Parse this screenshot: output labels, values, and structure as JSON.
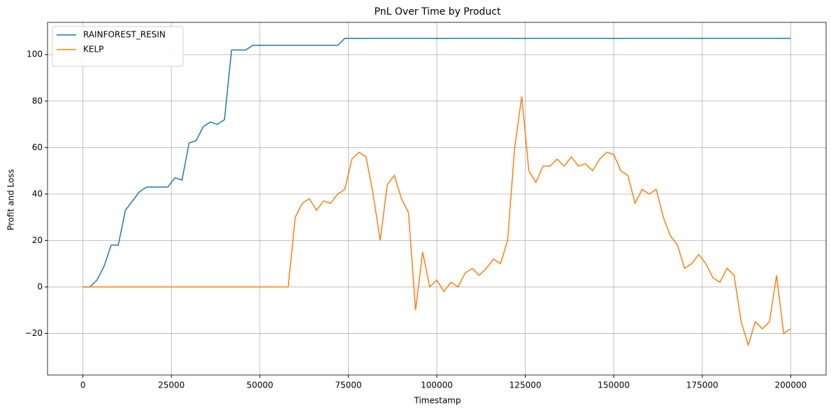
{
  "chart_data": {
    "type": "line",
    "title": "PnL Over Time by Product",
    "x_label": "Timestamp",
    "y_label": "Profit and Loss",
    "x": [
      0,
      2000,
      4000,
      6000,
      8000,
      10000,
      12000,
      14000,
      16000,
      18000,
      20000,
      22000,
      24000,
      26000,
      28000,
      30000,
      32000,
      34000,
      36000,
      38000,
      40000,
      42000,
      44000,
      46000,
      48000,
      50000,
      52000,
      54000,
      56000,
      58000,
      60000,
      62000,
      64000,
      66000,
      68000,
      70000,
      72000,
      74000,
      76000,
      78000,
      80000,
      82000,
      84000,
      86000,
      88000,
      90000,
      92000,
      94000,
      96000,
      98000,
      100000,
      102000,
      104000,
      106000,
      108000,
      110000,
      112000,
      114000,
      116000,
      118000,
      120000,
      122000,
      124000,
      126000,
      128000,
      130000,
      132000,
      134000,
      136000,
      138000,
      140000,
      142000,
      144000,
      146000,
      148000,
      150000,
      152000,
      154000,
      156000,
      158000,
      160000,
      162000,
      164000,
      166000,
      168000,
      170000,
      172000,
      174000,
      176000,
      178000,
      180000,
      182000,
      184000,
      186000,
      188000,
      190000,
      192000,
      194000,
      196000,
      198000,
      200000
    ],
    "series": [
      {
        "name": "RAINFOREST_RESIN",
        "color": "#1f77b4",
        "values": [
          0,
          0,
          3,
          9,
          18,
          18,
          33,
          37,
          41,
          43,
          43,
          43,
          43,
          47,
          46,
          62,
          63,
          69,
          71,
          70,
          72,
          102,
          102,
          102,
          104,
          104,
          104,
          104,
          104,
          104,
          104,
          104,
          104,
          104,
          104,
          104,
          104,
          107,
          107,
          107,
          107,
          107,
          107,
          107,
          107,
          107,
          107,
          107,
          107,
          107,
          107,
          107,
          107,
          107,
          107,
          107,
          107,
          107,
          107,
          107,
          107,
          107,
          107,
          107,
          107,
          107,
          107,
          107,
          107,
          107,
          107,
          107,
          107,
          107,
          107,
          107,
          107,
          107,
          107,
          107,
          107,
          107,
          107,
          107,
          107,
          107,
          107,
          107,
          107,
          107,
          107,
          107,
          107,
          107,
          107,
          107,
          107,
          107,
          107,
          107,
          107
        ]
      },
      {
        "name": "KELP",
        "color": "#ff7f0e",
        "values": [
          0,
          0,
          0,
          0,
          0,
          0,
          0,
          0,
          0,
          0,
          0,
          0,
          0,
          0,
          0,
          0,
          0,
          0,
          0,
          0,
          0,
          0,
          0,
          0,
          0,
          0,
          0,
          0,
          0,
          0,
          30,
          36,
          38,
          33,
          37,
          36,
          40,
          42,
          55,
          58,
          56,
          40,
          20,
          44,
          48,
          38,
          32,
          -10,
          15,
          0,
          3,
          -2,
          2,
          0,
          6,
          8,
          5,
          8,
          12,
          10,
          20,
          60,
          82,
          50,
          45,
          52,
          52,
          55,
          52,
          56,
          52,
          53,
          50,
          55,
          58,
          57,
          50,
          48,
          36,
          42,
          40,
          42,
          30,
          22,
          18,
          8,
          10,
          14,
          10,
          4,
          2,
          8,
          5,
          -15,
          -25,
          -15,
          -18,
          -15,
          5,
          -20,
          -18
        ]
      }
    ],
    "xlim": [
      -10000,
      210000
    ],
    "ylim": [
      -37.9,
      113.9
    ],
    "xticks": [
      0,
      25000,
      50000,
      75000,
      100000,
      125000,
      150000,
      175000,
      200000
    ],
    "yticks": [
      {
        "value": -20,
        "label": "−20"
      },
      0,
      20,
      40,
      60,
      80,
      100
    ],
    "grid": true,
    "legend": "upper-left"
  }
}
